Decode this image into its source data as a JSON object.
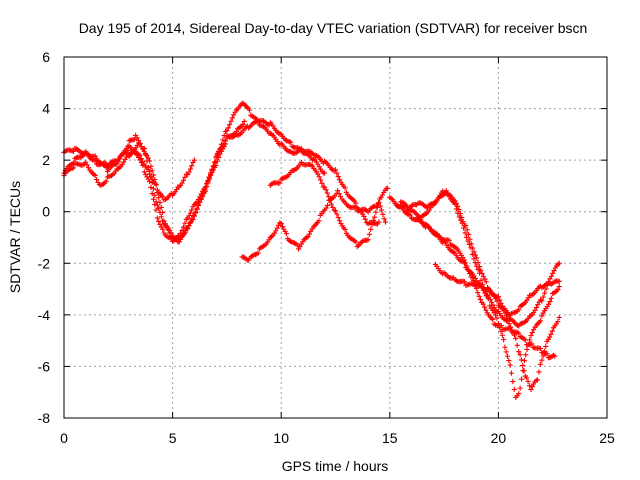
{
  "chart_data": {
    "type": "scatter",
    "title": "Day 195 of 2014, Sidereal Day-to-day VTEC variation (SDTVAR) for receiver bscn",
    "xlabel": "GPS time / hours",
    "ylabel": "SDTVAR / TECUs",
    "xlim": [
      0,
      25
    ],
    "ylim": [
      -8,
      6
    ],
    "x_ticks": [
      "0",
      "5",
      "10",
      "15",
      "20",
      "25"
    ],
    "y_ticks": [
      "6",
      "4",
      "2",
      "0",
      "-2",
      "-4",
      "-6",
      "-8"
    ],
    "grid": true,
    "marker": "+",
    "color": "#ff0000",
    "tracks": [
      [
        [
          0,
          1.5
        ],
        [
          0.5,
          2.0
        ],
        [
          1.0,
          2.3
        ],
        [
          1.5,
          1.9
        ],
        [
          2.0,
          1.8
        ],
        [
          2.5,
          2.0
        ],
        [
          3.0,
          2.5
        ],
        [
          3.5,
          2.2
        ],
        [
          4.0,
          1.4
        ],
        [
          4.3,
          0.9
        ],
        [
          4.6,
          0.5
        ],
        [
          5.0,
          0.7
        ],
        [
          5.3,
          1.0
        ],
        [
          5.7,
          1.5
        ],
        [
          6.0,
          2.0
        ]
      ],
      [
        [
          0,
          1.4
        ],
        [
          0.5,
          1.8
        ],
        [
          1.0,
          1.9
        ],
        [
          1.5,
          1.3
        ],
        [
          1.7,
          1.0
        ],
        [
          2.0,
          1.3
        ],
        [
          2.5,
          1.7
        ],
        [
          3.0,
          2.2
        ],
        [
          3.3,
          2.4
        ],
        [
          3.7,
          1.6
        ],
        [
          4.0,
          1.0
        ],
        [
          4.3,
          -0.2
        ],
        [
          4.6,
          -0.8
        ],
        [
          5.0,
          -1.1
        ],
        [
          5.3,
          -0.9
        ],
        [
          5.7,
          -0.2
        ],
        [
          6.0,
          0.3
        ],
        [
          6.5,
          0.9
        ],
        [
          7.0,
          1.8
        ],
        [
          7.5,
          2.8
        ],
        [
          8.0,
          3.2
        ],
        [
          8.3,
          3.5
        ]
      ],
      [
        [
          0,
          2.3
        ],
        [
          0.5,
          2.4
        ],
        [
          1.0,
          2.3
        ],
        [
          1.5,
          2.1
        ],
        [
          2.0,
          1.6
        ],
        [
          2.5,
          1.9
        ],
        [
          3.0,
          2.7
        ],
        [
          3.3,
          2.9
        ],
        [
          3.7,
          2.4
        ],
        [
          4.0,
          1.3
        ],
        [
          4.3,
          0.2
        ],
        [
          4.6,
          -0.5
        ],
        [
          5.0,
          -1.0
        ],
        [
          5.3,
          -1.2
        ],
        [
          5.6,
          -0.8
        ],
        [
          6.0,
          -0.2
        ],
        [
          6.5,
          0.9
        ],
        [
          7.0,
          2.1
        ],
        [
          7.5,
          3.2
        ],
        [
          8.0,
          4.0
        ],
        [
          8.3,
          4.2
        ],
        [
          8.6,
          3.8
        ],
        [
          9.0,
          3.4
        ],
        [
          9.5,
          3.0
        ],
        [
          10.0,
          2.6
        ],
        [
          10.5,
          2.3
        ],
        [
          11.0,
          2.4
        ],
        [
          11.5,
          2.2
        ],
        [
          12.0,
          1.9
        ],
        [
          12.5,
          1.6
        ],
        [
          13.0,
          0.8
        ],
        [
          13.5,
          0.2
        ],
        [
          14.0,
          -0.5
        ],
        [
          14.5,
          -0.4
        ]
      ],
      [
        [
          3.0,
          2.2
        ],
        [
          3.5,
          2.7
        ],
        [
          4.0,
          1.8
        ],
        [
          4.3,
          0.8
        ],
        [
          4.6,
          -0.3
        ],
        [
          5.0,
          -1.0
        ],
        [
          5.3,
          -1.1
        ],
        [
          5.7,
          -0.6
        ],
        [
          6.0,
          -0.1
        ],
        [
          6.5,
          0.8
        ],
        [
          7.0,
          2.1
        ],
        [
          7.5,
          2.9
        ],
        [
          8.0,
          3.0
        ],
        [
          8.5,
          3.3
        ],
        [
          9.0,
          3.5
        ],
        [
          9.5,
          3.4
        ],
        [
          10.0,
          3.0
        ],
        [
          10.5,
          2.6
        ],
        [
          11.0,
          2.3
        ],
        [
          11.5,
          2.0
        ],
        [
          12.0,
          1.5
        ]
      ],
      [
        [
          8.2,
          -1.8
        ],
        [
          8.5,
          -1.9
        ],
        [
          9.0,
          -1.5
        ],
        [
          9.5,
          -1.0
        ],
        [
          10.0,
          -0.4
        ],
        [
          10.3,
          -1.0
        ],
        [
          10.8,
          -1.4
        ],
        [
          11.3,
          -0.9
        ],
        [
          11.8,
          -0.2
        ],
        [
          12.2,
          0.4
        ],
        [
          12.6,
          0.8
        ],
        [
          13.0,
          0.3
        ],
        [
          13.5,
          0.1
        ],
        [
          14.0,
          0.0
        ],
        [
          14.5,
          0.3
        ],
        [
          14.8,
          -0.4
        ]
      ],
      [
        [
          9.5,
          1.0
        ],
        [
          10.0,
          1.2
        ],
        [
          10.5,
          1.6
        ],
        [
          11.0,
          1.9
        ],
        [
          11.5,
          1.7
        ],
        [
          12.0,
          0.9
        ],
        [
          12.5,
          0.0
        ],
        [
          13.0,
          -0.8
        ],
        [
          13.5,
          -1.3
        ],
        [
          14.0,
          -1.1
        ],
        [
          14.3,
          -0.2
        ],
        [
          14.6,
          0.6
        ],
        [
          14.9,
          0.9
        ]
      ],
      [
        [
          15.0,
          0.5
        ],
        [
          15.5,
          0.2
        ],
        [
          16.0,
          -0.2
        ],
        [
          16.5,
          -0.4
        ],
        [
          17.0,
          -0.8
        ],
        [
          17.5,
          -1.2
        ],
        [
          18.0,
          -1.6
        ],
        [
          18.5,
          -2.1
        ],
        [
          19.0,
          -2.7
        ],
        [
          19.5,
          -3.3
        ],
        [
          20.0,
          -3.9
        ],
        [
          20.5,
          -4.3
        ],
        [
          20.8,
          -4.9
        ],
        [
          21.0,
          -5.6
        ],
        [
          21.3,
          -6.5
        ],
        [
          21.5,
          -6.9
        ],
        [
          21.8,
          -6.5
        ],
        [
          22.0,
          -5.7
        ],
        [
          22.3,
          -4.9
        ],
        [
          22.6,
          -4.4
        ],
        [
          22.8,
          -4.1
        ]
      ],
      [
        [
          15.3,
          0.3
        ],
        [
          15.8,
          0.1
        ],
        [
          16.3,
          0.3
        ],
        [
          16.8,
          0.2
        ],
        [
          17.3,
          0.6
        ],
        [
          17.6,
          0.8
        ],
        [
          18.0,
          0.3
        ],
        [
          18.4,
          -0.6
        ],
        [
          18.8,
          -1.6
        ],
        [
          19.2,
          -2.6
        ],
        [
          19.6,
          -3.6
        ],
        [
          20.0,
          -4.3
        ],
        [
          20.3,
          -5.2
        ],
        [
          20.6,
          -6.2
        ],
        [
          20.8,
          -7.2
        ],
        [
          21.0,
          -6.9
        ],
        [
          21.2,
          -5.8
        ],
        [
          21.5,
          -4.8
        ],
        [
          22.0,
          -4.1
        ],
        [
          22.5,
          -3.2
        ],
        [
          22.8,
          -2.9
        ]
      ],
      [
        [
          15.5,
          0.4
        ],
        [
          16.0,
          0.0
        ],
        [
          16.5,
          -0.2
        ],
        [
          17.0,
          0.3
        ],
        [
          17.5,
          0.8
        ],
        [
          18.0,
          0.4
        ],
        [
          18.5,
          -0.6
        ],
        [
          19.0,
          -1.8
        ],
        [
          19.5,
          -2.9
        ],
        [
          20.0,
          -3.6
        ],
        [
          20.5,
          -4.2
        ],
        [
          21.0,
          -4.4
        ],
        [
          21.5,
          -4.0
        ],
        [
          22.0,
          -3.4
        ],
        [
          22.5,
          -2.4
        ],
        [
          22.8,
          -2.0
        ]
      ],
      [
        [
          16.2,
          -0.3
        ],
        [
          16.7,
          -0.6
        ],
        [
          17.2,
          -0.9
        ],
        [
          17.8,
          -1.2
        ],
        [
          18.3,
          -1.7
        ],
        [
          18.8,
          -2.6
        ],
        [
          19.3,
          -3.6
        ],
        [
          19.8,
          -4.3
        ],
        [
          20.2,
          -4.5
        ],
        [
          20.6,
          -4.6
        ],
        [
          21.0,
          -4.8
        ],
        [
          21.3,
          -5.1
        ],
        [
          21.6,
          -5.2
        ],
        [
          22.0,
          -5.4
        ],
        [
          22.3,
          -5.6
        ],
        [
          22.6,
          -5.6
        ]
      ],
      [
        [
          17.1,
          -2.1
        ],
        [
          17.5,
          -2.4
        ],
        [
          18.0,
          -2.6
        ],
        [
          18.5,
          -2.8
        ],
        [
          19.0,
          -2.9
        ],
        [
          19.5,
          -3.0
        ],
        [
          20.0,
          -3.3
        ],
        [
          20.3,
          -3.8
        ],
        [
          20.6,
          -4.0
        ],
        [
          21.0,
          -3.7
        ],
        [
          21.5,
          -3.2
        ],
        [
          22.0,
          -2.9
        ],
        [
          22.5,
          -2.8
        ],
        [
          22.8,
          -2.7
        ]
      ]
    ]
  }
}
